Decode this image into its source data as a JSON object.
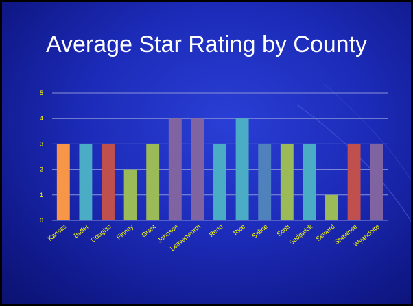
{
  "slide": {
    "title": "Average Star Rating by County"
  },
  "chart_data": {
    "type": "bar",
    "title": "Average Star Rating by County",
    "categories": [
      "Kansas",
      "Butler",
      "Douglas",
      "Finney",
      "Grant",
      "Johnson",
      "Leavenworth",
      "Reno",
      "Rice",
      "Saline",
      "Scott",
      "Sedgwick",
      "Seward",
      "Shawnee",
      "Wyandotte"
    ],
    "values": [
      3,
      3,
      3,
      2,
      3,
      4,
      4,
      3,
      4,
      3,
      3,
      3,
      1,
      3,
      3
    ],
    "bar_colors": [
      "#F79646",
      "#4BACC6",
      "#C0504D",
      "#9BBB59",
      "#9BBB59",
      "#8064A2",
      "#8064A2",
      "#4BACC6",
      "#4BACC6",
      "#4F81BD",
      "#9BBB59",
      "#4BACC6",
      "#9BBB59",
      "#C0504D",
      "#8064A2"
    ],
    "yticks": [
      "0",
      "1",
      "2",
      "3",
      "4",
      "5"
    ],
    "ylim": [
      0,
      5
    ],
    "xlabel": "",
    "ylabel": "",
    "grid": true,
    "legend": "none",
    "colors": {
      "tick_label": "#FFFF00",
      "gridline": "#8a93d8",
      "title": "#FFFFFF"
    }
  }
}
